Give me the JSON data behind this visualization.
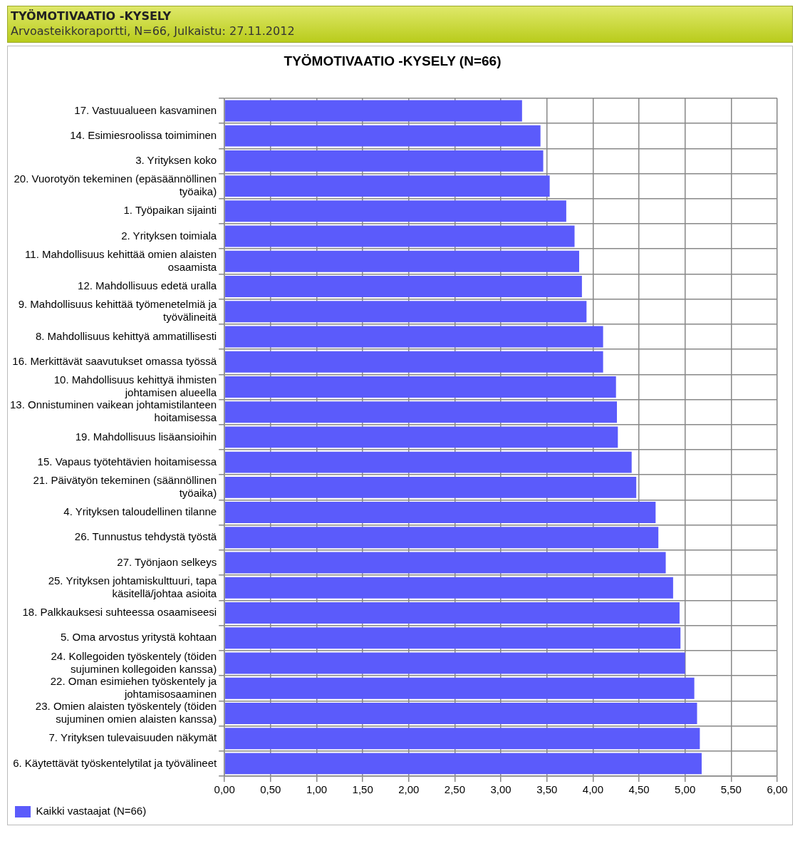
{
  "chart_data": {
    "type": "bar",
    "orientation": "horizontal",
    "title": "TYÖMOTIVAATIO -KYSELY (N=66)",
    "subtitle": "Arvoasteikkoraportti, N=66, Julkaistu: 27.11.2012",
    "annotations": [
      "TYÖMOTIVAATIO -KYSELY"
    ],
    "categories": [
      "17. Vastuualueen kasvaminen",
      "14. Esimiesroolissa toimiminen",
      "3. Yrityksen koko",
      "20. Vuorotyön tekeminen (epäsäännöllinen työaika)",
      "1. Työpaikan sijainti",
      "2. Yrityksen toimiala",
      "11. Mahdollisuus kehittää omien alaisten osaamista",
      "12. Mahdollisuus edetä uralla",
      "9. Mahdollisuus kehittää työmenetelmiä ja työvälineitä",
      "8. Mahdollisuus kehittyä ammatillisesti",
      "16. Merkittävät saavutukset omassa työssä",
      "10. Mahdollisuus kehittyä ihmisten johtamisen alueella",
      "13. Onnistuminen vaikean johtamistilanteen hoitamisessa",
      "19. Mahdollisuus lisäansioihin",
      "15. Vapaus työtehtävien hoitamisessa",
      "21. Päivätyön tekeminen (säännöllinen työaika)",
      "4. Yrityksen taloudellinen tilanne",
      "26. Tunnustus tehdystä työstä",
      "27. Työnjaon selkeys",
      "25. Yrityksen johtamiskulttuuri, tapa käsitellä/johtaa asioita",
      "18. Palkkauksesi suhteessa osaamiseesi",
      "5. Oma arvostus yritystä kohtaan",
      "24. Kollegoiden työskentely (töiden sujuminen kollegoiden kanssa)",
      "22. Oman esimiehen työskentely ja johtamisosaaminen",
      "23. Omien alaisten työskentely (töiden sujuminen omien alaisten kanssa)",
      "7. Yrityksen tulevaisuuden näkymät",
      "6. Käytettävät työskentelytilat ja työvälineet"
    ],
    "series": [
      {
        "name": "Kaikki vastaajat (N=66)",
        "color": "#5b5bfb",
        "values": [
          3.23,
          3.43,
          3.46,
          3.53,
          3.71,
          3.8,
          3.85,
          3.88,
          3.93,
          4.11,
          4.11,
          4.25,
          4.26,
          4.27,
          4.42,
          4.47,
          4.68,
          4.71,
          4.79,
          4.87,
          4.94,
          4.95,
          5.0,
          5.1,
          5.13,
          5.16,
          5.18
        ]
      }
    ],
    "xlim": [
      0,
      6
    ],
    "xticks": [
      {
        "value": 0,
        "label": "0,00"
      },
      {
        "value": 0.5,
        "label": "0,50"
      },
      {
        "value": 1,
        "label": "1,00"
      },
      {
        "value": 1.5,
        "label": "1,50"
      },
      {
        "value": 2,
        "label": "2,00"
      },
      {
        "value": 2.5,
        "label": "2,50"
      },
      {
        "value": 3,
        "label": "3,00"
      },
      {
        "value": 3.5,
        "label": "3,50"
      },
      {
        "value": 4,
        "label": "4,00"
      },
      {
        "value": 4.5,
        "label": "4,50"
      },
      {
        "value": 5,
        "label": "5,00"
      },
      {
        "value": 5.5,
        "label": "5,50"
      },
      {
        "value": 6,
        "label": "6,00"
      }
    ],
    "grid": true,
    "legend": "bottom left"
  }
}
